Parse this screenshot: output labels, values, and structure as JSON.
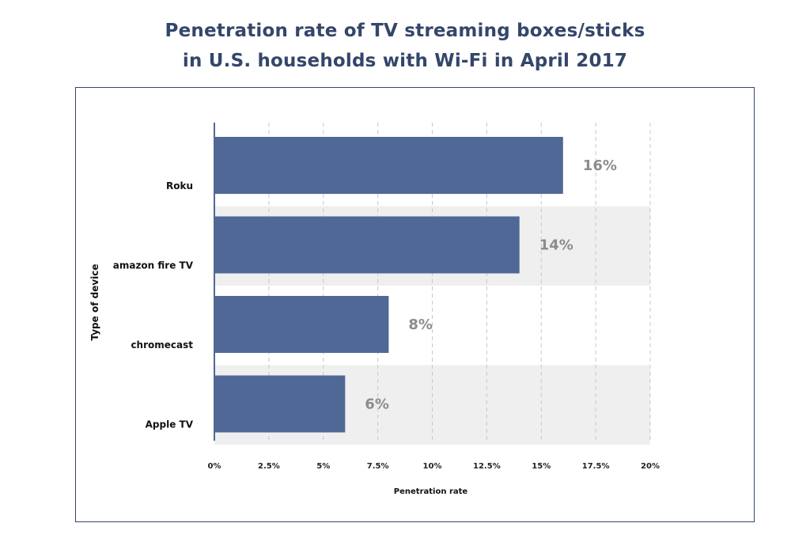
{
  "chart_data": {
    "type": "bar",
    "orientation": "horizontal",
    "title_lines": [
      "Penetration rate of TV streaming boxes/sticks",
      "in U.S. households with Wi-Fi in April 2017"
    ],
    "xlabel": "Penetration rate",
    "ylabel": "Type of device",
    "categories": [
      "Roku",
      "amazon fire TV",
      "chromecast",
      "Apple TV"
    ],
    "values": [
      16,
      14,
      8,
      6
    ],
    "value_labels": [
      "16%",
      "14%",
      "8%",
      "6%"
    ],
    "xlim": [
      0,
      20
    ],
    "xticks": [
      0,
      2.5,
      5,
      7.5,
      10,
      12.5,
      15,
      17.5,
      20
    ],
    "xtick_labels": [
      "0%",
      "2.5%",
      "5%",
      "7.5%",
      "10%",
      "12.5%",
      "15%",
      "17.5%",
      "20%"
    ],
    "grid": "vertical dashed",
    "legend": "none",
    "colors": {
      "bar": "#4f6896",
      "title": "#34466b",
      "band": "#efefef",
      "grid": "#c8c8c8",
      "value_label": "#8c8c8c",
      "frame": "#34466b"
    }
  }
}
